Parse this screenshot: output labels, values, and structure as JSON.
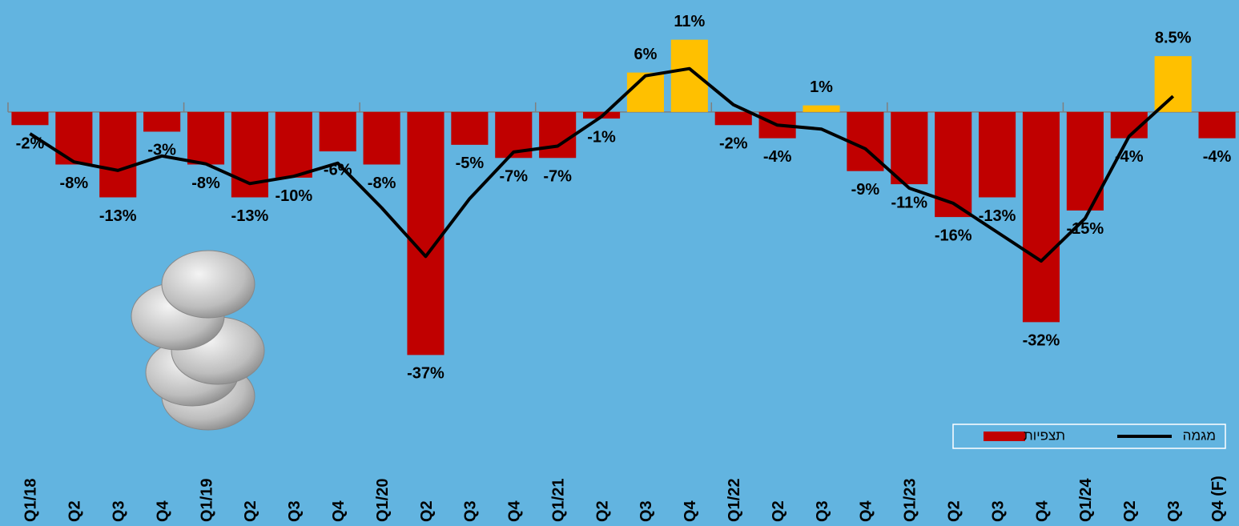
{
  "chart_data": {
    "type": "bar",
    "categories": [
      "Q1/18",
      "Q2",
      "Q3",
      "Q4",
      "Q1/19",
      "Q2",
      "Q3",
      "Q4",
      "Q1/20",
      "Q2",
      "Q3",
      "Q4",
      "Q1/21",
      "Q2",
      "Q3",
      "Q4",
      "Q1/22",
      "Q2",
      "Q3",
      "Q4",
      "Q1/23",
      "Q2",
      "Q3",
      "Q4",
      "Q1/24",
      "Q2",
      "Q3",
      "Q4 (F)"
    ],
    "series": [
      {
        "name": "תצפיות",
        "type": "bar",
        "color": "#c00000",
        "positive_color": "#ffc000",
        "values": [
          -2,
          -8,
          -13,
          -3,
          -8,
          -13,
          -10,
          -6,
          -8,
          -37,
          -5,
          -7,
          -7,
          -1,
          6,
          11,
          -2,
          -4,
          1,
          -9,
          -11,
          -16,
          -13,
          -32,
          -15,
          -4,
          8.5,
          -4
        ],
        "value_labels": [
          "-2%",
          "-8%",
          "-13%",
          "-3%",
          "-8%",
          "-13%",
          "-10%",
          "-6%",
          "-8%",
          "-37%",
          "-5%",
          "-7%",
          "-7%",
          "-1%",
          "6%",
          "11%",
          "-2%",
          "-4%",
          "1%",
          "-9%",
          "-11%",
          "-16%",
          "-13%",
          "-32%",
          "-15%",
          "-4%",
          "8.5%",
          "-4%"
        ]
      },
      {
        "name": "מגמה",
        "type": "line",
        "color": "#000000",
        "values": [
          -3.3,
          -7.6,
          -8.9,
          -6.7,
          -7.9,
          -10.9,
          -9.8,
          -7.8,
          -14.6,
          -22,
          -13.2,
          -6.1,
          -5.2,
          -0.7,
          5.5,
          6.6,
          1.1,
          -2,
          -2.6,
          -5.6,
          -11.6,
          -13.9,
          -18.3,
          -22.7,
          -16.2,
          -3.7,
          2.4,
          null
        ]
      }
    ],
    "ylim": [
      -40,
      14
    ],
    "legend": "lower right"
  }
}
